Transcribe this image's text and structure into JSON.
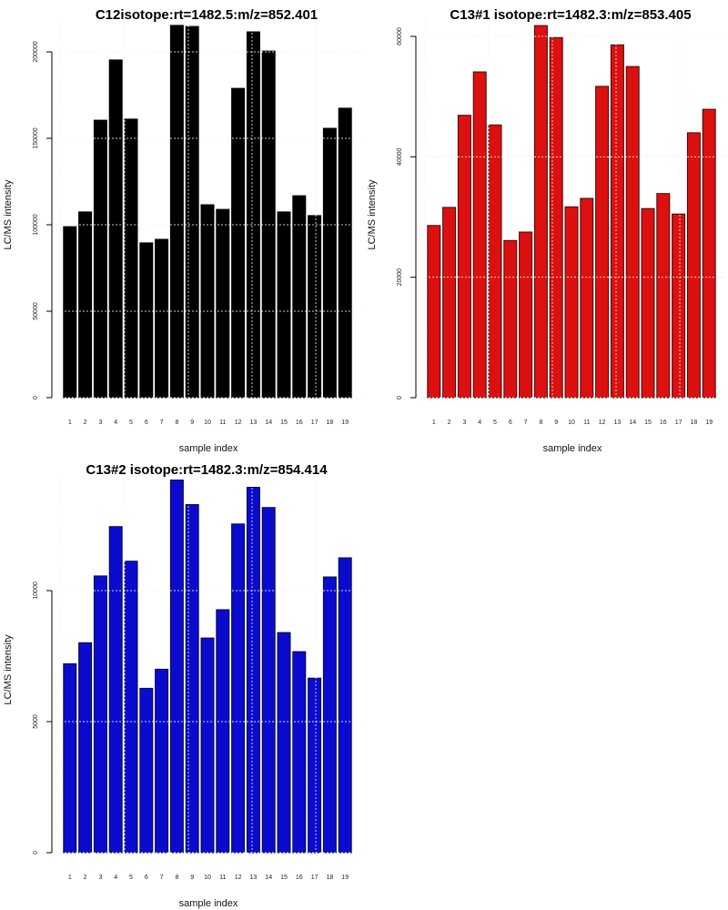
{
  "chart_data": [
    {
      "type": "bar",
      "title": "C12isotope:rt=1482.5:m/z=852.401",
      "xlabel": "sample index",
      "ylabel": "LC/MS intensity",
      "categories": [
        "1",
        "2",
        "3",
        "4",
        "5",
        "6",
        "7",
        "8",
        "9",
        "10",
        "11",
        "12",
        "13",
        "14",
        "15",
        "16",
        "17",
        "18",
        "19"
      ],
      "values": [
        98900,
        107400,
        160500,
        195300,
        161100,
        89500,
        91600,
        215300,
        214700,
        111600,
        108900,
        178900,
        211600,
        200500,
        107400,
        116800,
        105300,
        155800,
        167400
      ],
      "yticks": [
        0,
        50000,
        100000,
        150000,
        200000
      ],
      "ytick_labels": [
        "0",
        "50000",
        "100000",
        "150000",
        "200000"
      ],
      "ylim": [
        0,
        220000
      ],
      "color": "#000000",
      "border": "#000000",
      "grid": true
    },
    {
      "type": "bar",
      "title": "C13#1 isotope:rt=1482.3:m/z=853.405",
      "xlabel": "sample index",
      "ylabel": "LC/MS intensity",
      "categories": [
        "1",
        "2",
        "3",
        "4",
        "5",
        "6",
        "7",
        "8",
        "9",
        "10",
        "11",
        "12",
        "13",
        "14",
        "15",
        "16",
        "17",
        "18",
        "19"
      ],
      "values": [
        28600,
        31600,
        46900,
        54100,
        45300,
        26100,
        27500,
        61800,
        59800,
        31700,
        33100,
        51700,
        58600,
        55000,
        31400,
        33900,
        30500,
        44000,
        47900
      ],
      "yticks": [
        0,
        20000,
        40000,
        60000
      ],
      "ytick_labels": [
        "0",
        "20000",
        "40000",
        "60000"
      ],
      "ylim": [
        0,
        63000
      ],
      "color": "#dd1010",
      "border": "#3a0a0a",
      "grid": true
    },
    {
      "type": "bar",
      "title": "C13#2 isotope:rt=1482.3:m/z=854.414",
      "xlabel": "sample index",
      "ylabel": "LC/MS intensity",
      "categories": [
        "1",
        "2",
        "3",
        "4",
        "5",
        "6",
        "7",
        "8",
        "9",
        "10",
        "11",
        "12",
        "13",
        "14",
        "15",
        "16",
        "17",
        "18",
        "19"
      ],
      "values": [
        7210,
        8010,
        10560,
        12440,
        11120,
        6270,
        7000,
        14220,
        13280,
        8190,
        9270,
        12540,
        13940,
        13170,
        8400,
        7670,
        6660,
        10520,
        11250
      ],
      "yticks": [
        0,
        5000,
        10000
      ],
      "ytick_labels": [
        "0",
        "5000",
        "10000"
      ],
      "ylim": [
        0,
        14500
      ],
      "color": "#0b0bd0",
      "border": "#0a0a3a",
      "grid": true
    }
  ]
}
